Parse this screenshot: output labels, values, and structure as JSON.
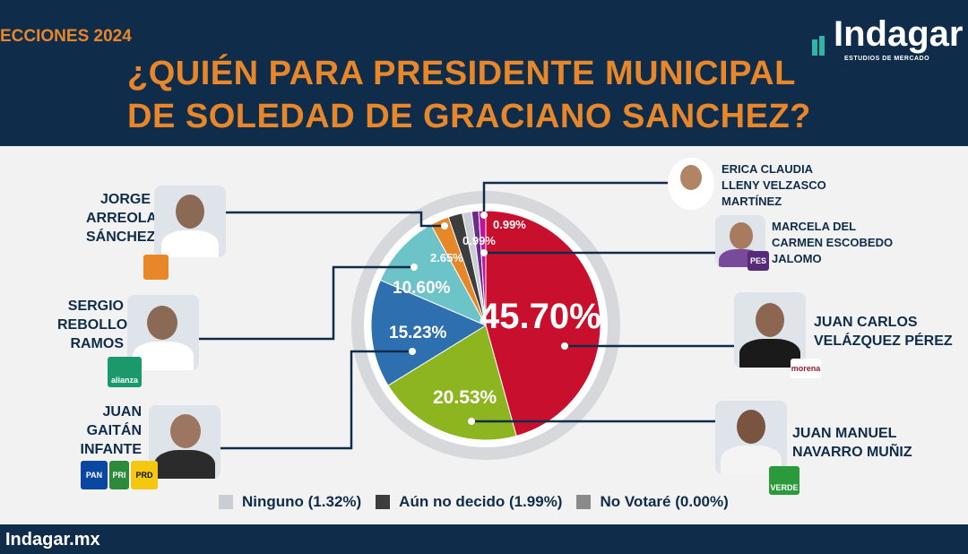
{
  "header": {
    "tag": "ECCIONES 2024",
    "title_line1": "¿QUIÉN PARA PRESIDENTE MUNICIPAL",
    "title_line2": "DE SOLEDAD DE GRACIANO SANCHEZ?",
    "logo_text": "Indagar",
    "logo_sub": "ESTUDIOS DE MERCADO"
  },
  "footer": {
    "site": "Indagar.mx"
  },
  "colors": {
    "navy": "#0f2d4a",
    "orange": "#e8862a"
  },
  "candidates": {
    "jorge": {
      "name": "JORGE ARREOLA SÁNCHEZ",
      "lines": [
        "JORGE",
        "ARREOLA",
        "SÁNCHEZ"
      ]
    },
    "sergio": {
      "name": "SERGIO REBOLLOSO RAMOS",
      "lines": [
        "SERGIO",
        "REBOLLOSO",
        "RAMOS"
      ],
      "badge": "alianza"
    },
    "juang": {
      "name": "JUAN GAITÁN INFANTE",
      "lines": [
        "JUAN",
        "GAITÁN",
        "INFANTE"
      ],
      "badges": [
        "PAN",
        "PRI",
        "PRD"
      ]
    },
    "erica": {
      "lines": [
        "ERICA CLAUDIA",
        "LLENY VELZASCO",
        "MARTÍNEZ"
      ]
    },
    "marcela": {
      "lines": [
        "MARCELA DEL",
        "CARMEN ESCOBEDO",
        "JALOMO"
      ],
      "badge": "PES"
    },
    "juancarlos": {
      "lines": [
        "JUAN CARLOS",
        "VELÁZQUEZ PÉREZ"
      ],
      "badge": "morena"
    },
    "juanmanuel": {
      "lines": [
        "JUAN MANUEL",
        "NAVARRO MUÑIZ"
      ],
      "badge": "VERDE"
    }
  },
  "legend": {
    "ninguno": "Ninguno (1.32%)",
    "aun": "Aún no decido (1.99%)",
    "novotare": "No Votaré (0.00%)"
  },
  "chart_data": {
    "type": "pie",
    "title": "¿QUIÉN PARA PRESIDENTE MUNICIPAL DE SOLEDAD DE GRACIANO SANCHEZ?",
    "slices": [
      {
        "candidate": "JUAN CARLOS VELÁZQUEZ PÉREZ",
        "value": 45.7,
        "label": "45.70%",
        "color": "#c8102e"
      },
      {
        "candidate": "JUAN MANUEL NAVARRO MUÑIZ",
        "value": 20.53,
        "label": "20.53%",
        "color": "#8db51f"
      },
      {
        "candidate": "JUAN GAITÁN INFANTE",
        "value": 15.23,
        "label": "15.23%",
        "color": "#2e6fb0"
      },
      {
        "candidate": "SERGIO REBOLLOSO RAMOS",
        "value": 10.6,
        "label": "10.60%",
        "color": "#6cc3c8"
      },
      {
        "candidate": "JORGE ARREOLA SÁNCHEZ",
        "value": 2.65,
        "label": "2.65%",
        "color": "#e8862a"
      },
      {
        "candidate": "Aún no decido",
        "value": 1.99,
        "label": "",
        "color": "#3d3d3d"
      },
      {
        "candidate": "Ninguno",
        "value": 1.32,
        "label": "",
        "color": "#c9cdd4"
      },
      {
        "candidate": "MARCELA DEL CARMEN ESCOBEDO JALOMO",
        "value": 0.99,
        "label": "0.99%",
        "color": "#6a2c8a"
      },
      {
        "candidate": "ERICA CLAUDIA LLENY VELZASCO MARTÍNEZ",
        "value": 0.99,
        "label": "0.99%",
        "color": "#c0129a"
      }
    ],
    "legend": [
      {
        "name": "Ninguno (1.32%)",
        "color": "#c9cdd4"
      },
      {
        "name": "Aún no decido (1.99%)",
        "color": "#3d3d3d"
      },
      {
        "name": "No Votaré (0.00%)",
        "color": "#8a8a8a"
      }
    ]
  }
}
